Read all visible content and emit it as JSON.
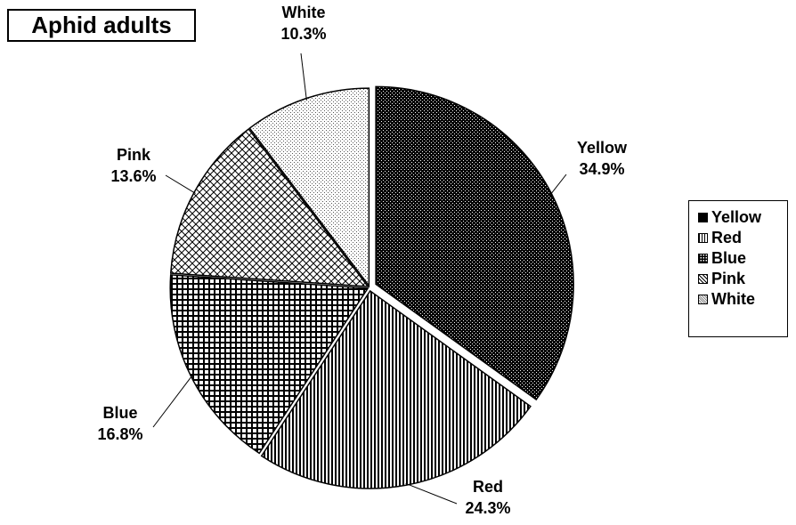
{
  "chart_data": {
    "type": "pie",
    "title": "Aphid adults",
    "categories": [
      "Yellow",
      "Red",
      "Blue",
      "Pink",
      "White"
    ],
    "values": [
      34.9,
      24.3,
      16.8,
      13.6,
      10.3
    ],
    "value_labels": [
      "34.9%",
      "24.3%",
      "16.8%",
      "13.6%",
      "10.3%"
    ],
    "start_angle_deg": 0,
    "direction": "clockwise",
    "legend": {
      "position": "right",
      "entries": [
        "Yellow",
        "Red",
        "Blue",
        "Pink",
        "White"
      ]
    },
    "fills": {
      "Yellow": "dense dark dots",
      "Red": "vertical stripes",
      "Blue": "checkerboard grid",
      "Pink": "diagonal crosshatch",
      "White": "light dots"
    },
    "colors": {
      "ink": "#000000",
      "background": "#ffffff"
    }
  }
}
